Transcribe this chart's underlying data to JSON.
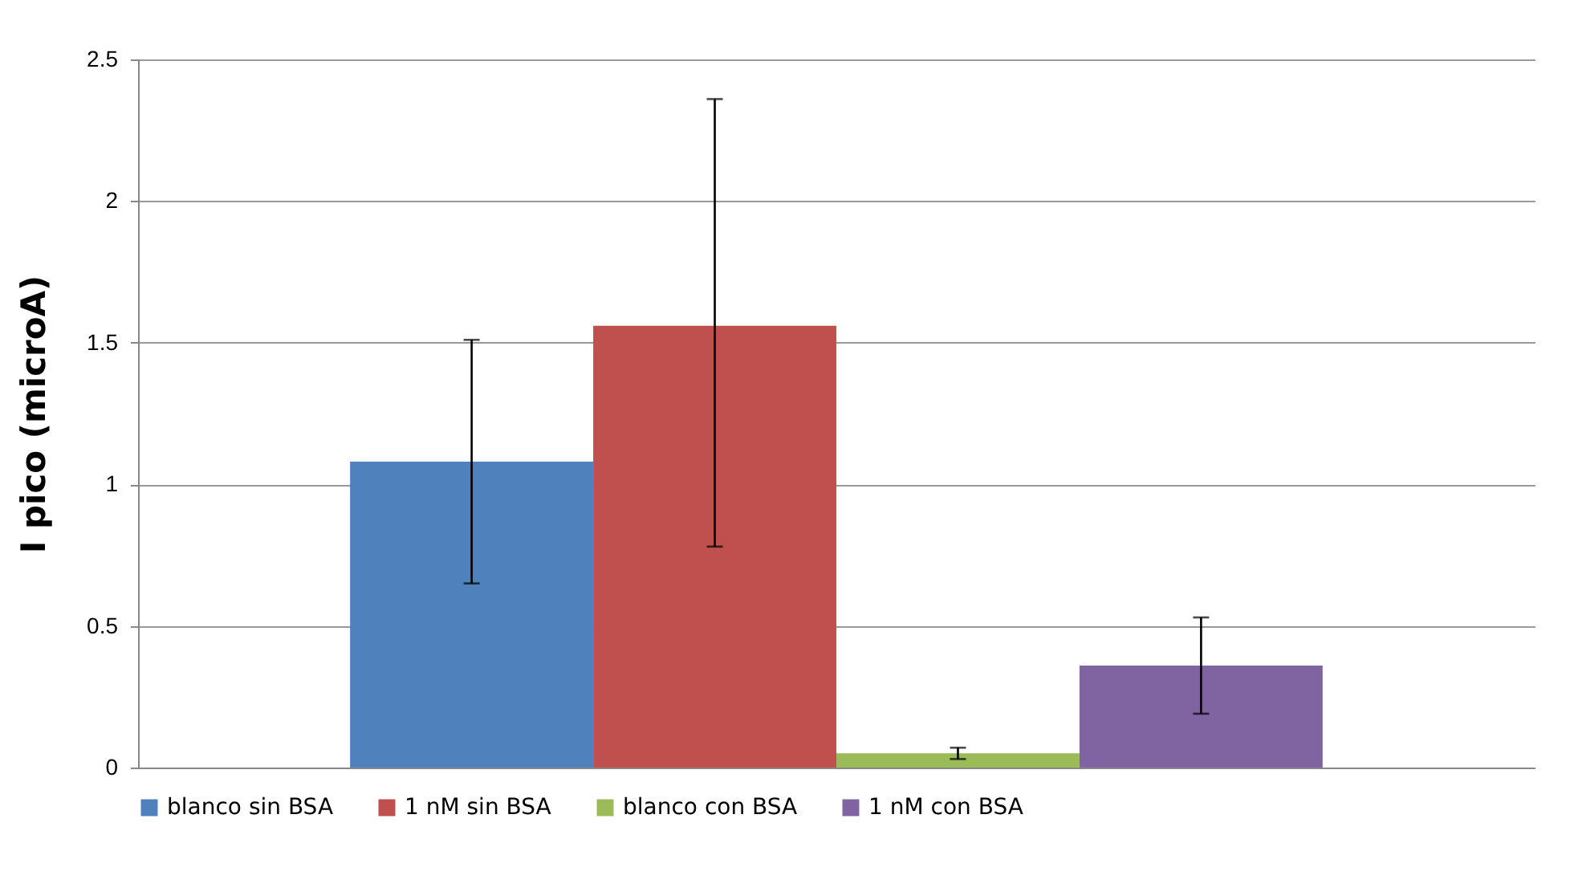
{
  "chart_data": {
    "type": "bar",
    "ylabel": "I pico (microA)",
    "categories": [
      null
    ],
    "series": [
      {
        "name": "blanco sin BSA",
        "color": "#4f81bd",
        "values": [
          1.08
        ],
        "errors": [
          [
            0.65,
            1.51
          ]
        ]
      },
      {
        "name": "1 nM sin BSA",
        "color": "#c0504d",
        "values": [
          1.56
        ],
        "errors": [
          [
            0.78,
            2.36
          ]
        ]
      },
      {
        "name": "blanco con BSA",
        "color": "#9bbb59",
        "values": [
          0.05
        ],
        "errors": [
          [
            0.03,
            0.07
          ]
        ]
      },
      {
        "name": "1 nM con BSA",
        "color": "#8064a2",
        "values": [
          0.36
        ],
        "errors": [
          [
            0.19,
            0.53
          ]
        ]
      }
    ],
    "ylim": [
      0,
      2.5
    ],
    "yticks": [
      0,
      0.5,
      1,
      1.5,
      2,
      2.5
    ],
    "grid": "y",
    "legend": "bottom"
  }
}
